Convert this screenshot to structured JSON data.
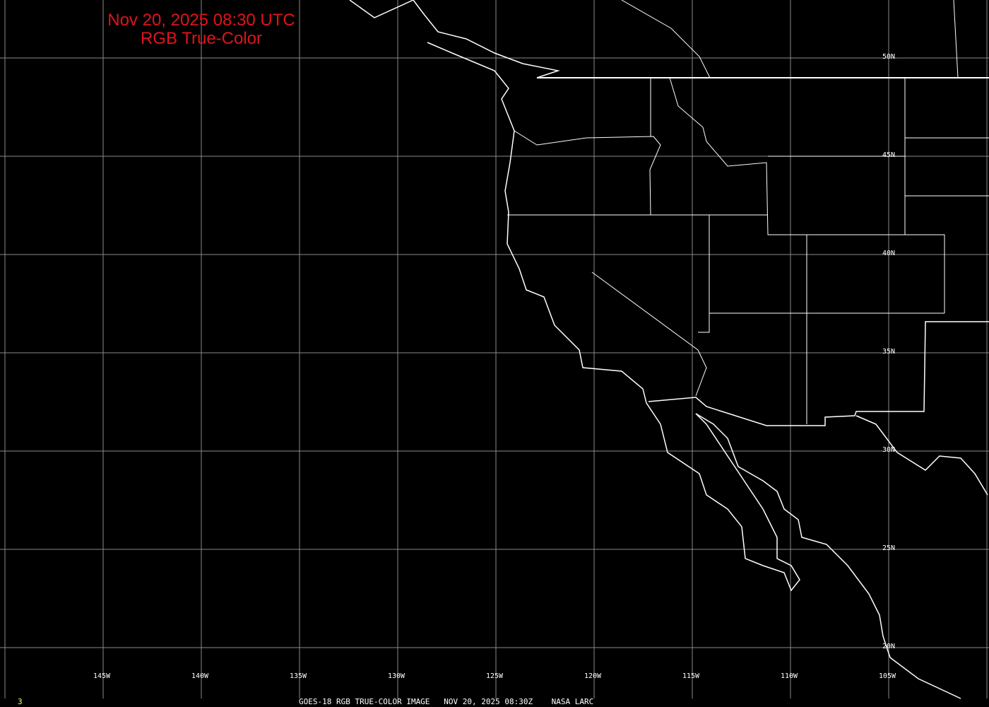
{
  "title": {
    "line1": "Nov 20, 2025 08:30 UTC",
    "line2": "RGB True-Color"
  },
  "lat_labels": [
    "50N",
    "45N",
    "40N",
    "35N",
    "30N",
    "25N",
    "20N"
  ],
  "lon_labels": [
    "145W",
    "140W",
    "135W",
    "130W",
    "125W",
    "120W",
    "115W",
    "110W",
    "105W"
  ],
  "footer": {
    "caption": "GOES-18 RGB TRUE-COLOR IMAGE   NOV 20, 2025 08:30Z    NASA LARC",
    "frame_number": "3"
  },
  "colors": {
    "title": "#e0141a",
    "grid": "#8a8a8a",
    "coastline": "#ffffff",
    "frame_number": "#ffff40"
  }
}
